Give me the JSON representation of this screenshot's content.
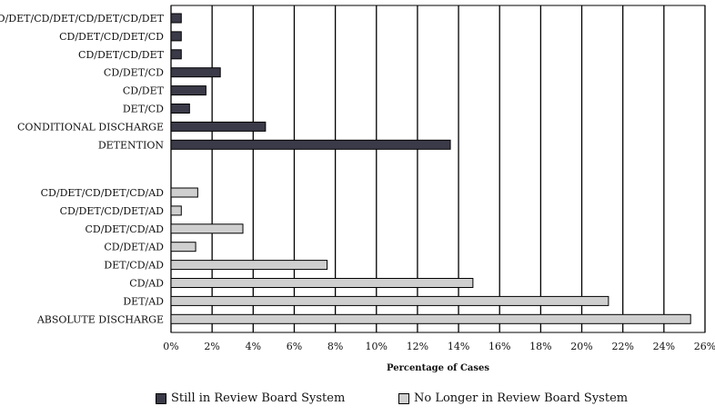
{
  "chart_data": {
    "type": "bar",
    "orientation": "horizontal",
    "xlabel": "Percentage of Cases",
    "xlim": [
      0,
      26
    ],
    "x_ticks": [
      "0%",
      "2%",
      "4%",
      "6%",
      "8%",
      "10%",
      "12%",
      "14%",
      "16%",
      "18%",
      "20%",
      "22%",
      "24%",
      "26%"
    ],
    "grid": "vertical",
    "legend_position": "bottom",
    "groups": [
      {
        "series": "Still in Review Board System",
        "color": "#3a3a48",
        "bars": [
          {
            "label": "CD/DET/CD/DET/CD/DET/CD/DET",
            "value": 0.5
          },
          {
            "label": "CD/DET/CD/DET/CD",
            "value": 0.5
          },
          {
            "label": "CD/DET/CD/DET",
            "value": 0.5
          },
          {
            "label": "CD/DET/CD",
            "value": 2.4
          },
          {
            "label": "CD/DET",
            "value": 1.7
          },
          {
            "label": "DET/CD",
            "value": 0.9
          },
          {
            "label": "CONDITIONAL DISCHARGE",
            "value": 4.6
          },
          {
            "label": "DETENTION",
            "value": 13.6
          }
        ]
      },
      {
        "series": "No Longer in Review Board System",
        "color": "#cfcfcf",
        "bars": [
          {
            "label": "CD/DET/CD/DET/CD/AD",
            "value": 1.3
          },
          {
            "label": "CD/DET/CD/DET/AD",
            "value": 0.5
          },
          {
            "label": "CD/DET/CD/AD",
            "value": 3.5
          },
          {
            "label": "CD/DET/AD",
            "value": 1.2
          },
          {
            "label": "DET/CD/AD",
            "value": 7.6
          },
          {
            "label": "CD/AD",
            "value": 14.7
          },
          {
            "label": "DET/AD",
            "value": 21.3
          },
          {
            "label": "ABSOLUTE DISCHARGE",
            "value": 25.3
          }
        ]
      }
    ]
  },
  "legend": {
    "items": [
      {
        "label": "Still in Review Board System",
        "color": "#3a3a48"
      },
      {
        "label": "No Longer in Review Board System",
        "color": "#cfcfcf"
      }
    ]
  }
}
